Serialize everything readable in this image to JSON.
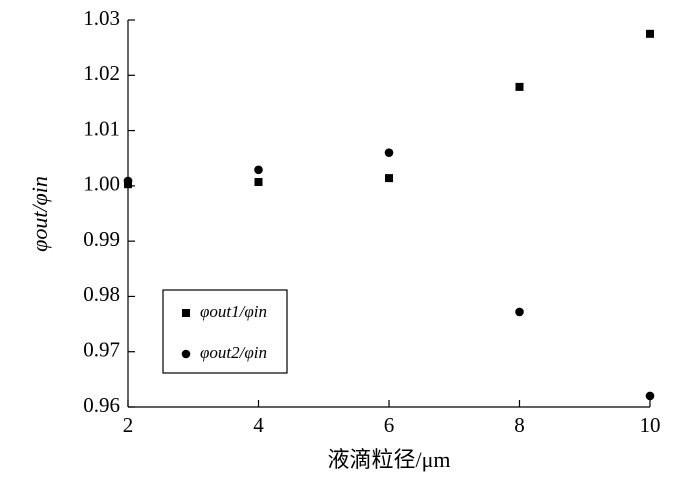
{
  "chart_data": {
    "type": "scatter",
    "x_label": "液滴粒径/μm",
    "y_label": "φout/φin",
    "xlim": [
      2,
      10
    ],
    "xticks": [
      2,
      4,
      6,
      8,
      10
    ],
    "ylim": [
      0.96,
      1.03
    ],
    "yticks": [
      0.96,
      0.97,
      0.98,
      0.99,
      {
        "value": 1,
        "label": "1.00"
      },
      1.01,
      1.02,
      1.03
    ],
    "legend": "lower left",
    "series": [
      {
        "name": "φout1/φin",
        "marker": "square",
        "color": "#000000",
        "x": [
          2,
          4,
          6,
          8,
          10
        ],
        "values": [
          1.0003,
          1.0007,
          1.0014,
          1.0179,
          1.0275
        ]
      },
      {
        "name": "φout2/φin",
        "marker": "circle",
        "color": "#000000",
        "x": [
          2,
          4,
          6,
          8,
          10
        ],
        "values": [
          1.0009,
          1.0029,
          1.006,
          0.9772,
          0.962
        ]
      }
    ]
  }
}
